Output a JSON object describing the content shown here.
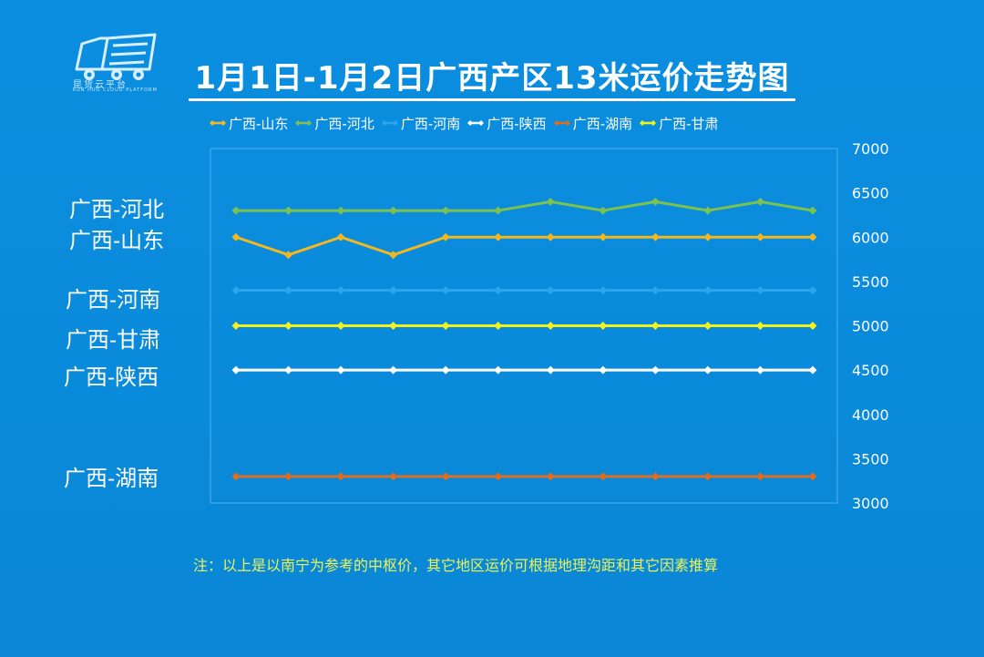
{
  "logo": {
    "icon": "truck-logo-icon",
    "text": "昆货云平台",
    "subtext": "KUN HUO CLOUD PLATFORM",
    "color": "#cfeaff"
  },
  "chart_data": {
    "type": "line",
    "title": "1月1日-1月2日广西产区13米运价走势图",
    "xlabel": "",
    "ylabel": "",
    "ylim": [
      3000,
      7000
    ],
    "yticks": [
      3000,
      3500,
      4000,
      4500,
      5000,
      5500,
      6000,
      6500,
      7000
    ],
    "x": [
      1,
      2,
      3,
      4,
      5,
      6,
      7,
      8,
      9,
      10,
      11,
      12
    ],
    "grid": false,
    "legend_position": "top",
    "series": [
      {
        "name": "广西-山东",
        "color": "#f2b81f",
        "values": [
          6000,
          5800,
          6000,
          5800,
          6000,
          6000,
          6000,
          6000,
          6000,
          6000,
          6000,
          6000
        ]
      },
      {
        "name": "广西-河北",
        "color": "#7cc24f",
        "values": [
          6300,
          6300,
          6300,
          6300,
          6300,
          6300,
          6400,
          6300,
          6400,
          6300,
          6400,
          6300
        ]
      },
      {
        "name": "广西-河南",
        "color": "#2aa6ee",
        "values": [
          5400,
          5400,
          5400,
          5400,
          5400,
          5400,
          5400,
          5400,
          5400,
          5400,
          5400,
          5400
        ]
      },
      {
        "name": "广西-陕西",
        "color": "#ffffff",
        "values": [
          4500,
          4500,
          4500,
          4500,
          4500,
          4500,
          4500,
          4500,
          4500,
          4500,
          4500,
          4500
        ]
      },
      {
        "name": "广西-湖南",
        "color": "#e06c1e",
        "values": [
          3300,
          3300,
          3300,
          3300,
          3300,
          3300,
          3300,
          3300,
          3300,
          3300,
          3300,
          3300
        ]
      },
      {
        "name": "广西-甘肃",
        "color": "#f5f21a",
        "values": [
          5000,
          5000,
          5000,
          5000,
          5000,
          5000,
          5000,
          5000,
          5000,
          5000,
          5000,
          5000
        ]
      }
    ]
  },
  "side_labels": [
    "广西-河北",
    "广西-山东",
    "广西-河南",
    "广西-甘肃",
    "广西-陕西",
    "广西-湖南"
  ],
  "note": "注：以上是以南宁为参考的中枢价，其它地区运价可根据地理沟距和其它因素推算"
}
